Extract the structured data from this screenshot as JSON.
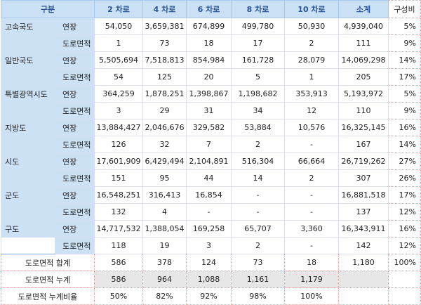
{
  "header": {
    "category": "구분",
    "columns": [
      "2 차로",
      "4 차로",
      "6 차로",
      "8 차로",
      "10 차로",
      "소계"
    ],
    "ratio": "구성비"
  },
  "groups": [
    {
      "name": "고속국도",
      "rows": [
        {
          "label": "연장",
          "values": [
            "54,050",
            "3,659,381",
            "674,899",
            "499,780",
            "50,930",
            "4,939,040"
          ],
          "ratio": "5%"
        },
        {
          "label": "도로면적",
          "values": [
            "1",
            "73",
            "18",
            "17",
            "2",
            "111"
          ],
          "ratio": "9%"
        }
      ]
    },
    {
      "name": "일반국도",
      "rows": [
        {
          "label": "연장",
          "values": [
            "5,505,694",
            "7,518,813",
            "854,984",
            "161,728",
            "28,079",
            "14,069,298"
          ],
          "ratio": "14%"
        },
        {
          "label": "도로면적",
          "values": [
            "54",
            "125",
            "20",
            "5",
            "1",
            "205"
          ],
          "ratio": "17%"
        }
      ]
    },
    {
      "name": "특별광역시도",
      "rows": [
        {
          "label": "연장",
          "values": [
            "364,259",
            "1,878,251",
            "1,398,867",
            "1,198,682",
            "353,913",
            "5,193,972"
          ],
          "ratio": "5%"
        },
        {
          "label": "도로면적",
          "values": [
            "3",
            "29",
            "31",
            "34",
            "12",
            "110"
          ],
          "ratio": "9%"
        }
      ]
    },
    {
      "name": "지방도",
      "rows": [
        {
          "label": "연장",
          "values": [
            "13,884,427",
            "2,046,676",
            "329,582",
            "53,884",
            "10,576",
            "16,325,145"
          ],
          "ratio": "16%"
        },
        {
          "label": "도로면적",
          "values": [
            "126",
            "32",
            "7",
            "2",
            "-",
            "167"
          ],
          "ratio": "14%"
        }
      ]
    },
    {
      "name": "시도",
      "rows": [
        {
          "label": "연장",
          "values": [
            "17,601,909",
            "6,429,494",
            "2,104,891",
            "516,304",
            "66,664",
            "26,719,262"
          ],
          "ratio": "27%"
        },
        {
          "label": "도로면적",
          "values": [
            "151",
            "95",
            "44",
            "14",
            "2",
            "307"
          ],
          "ratio": "26%"
        }
      ]
    },
    {
      "name": "군도",
      "rows": [
        {
          "label": "연장",
          "values": [
            "16,548,251",
            "316,413",
            "16,854",
            "-",
            "-",
            "16,881,518"
          ],
          "ratio": "17%"
        },
        {
          "label": "도로면적",
          "values": [
            "132",
            "4",
            "-",
            "-",
            "-",
            "137"
          ],
          "ratio": "12%"
        }
      ]
    },
    {
      "name": "구도",
      "rows": [
        {
          "label": "연장",
          "values": [
            "14,717,532",
            "1,388,054",
            "169,258",
            "65,707",
            "3,360",
            "16,343,911"
          ],
          "ratio": "16%"
        },
        {
          "label": "도로면적",
          "values": [
            "118",
            "19",
            "3",
            "2",
            "-",
            "142"
          ],
          "ratio": "12%"
        }
      ]
    }
  ],
  "footer": [
    {
      "label": "도로면적 합계",
      "values": [
        "586",
        "378",
        "124",
        "73",
        "18",
        "1,180"
      ],
      "ratio": "100%",
      "shaded": false
    },
    {
      "label": "도로면적 누계",
      "values": [
        "586",
        "964",
        "1,088",
        "1,161",
        "1,179",
        ""
      ],
      "ratio": "",
      "shaded": true
    },
    {
      "label": "도로면적 누계비율",
      "values": [
        "50%",
        "82%",
        "92%",
        "98%",
        "100%",
        ""
      ],
      "ratio": "",
      "shaded": false
    }
  ]
}
